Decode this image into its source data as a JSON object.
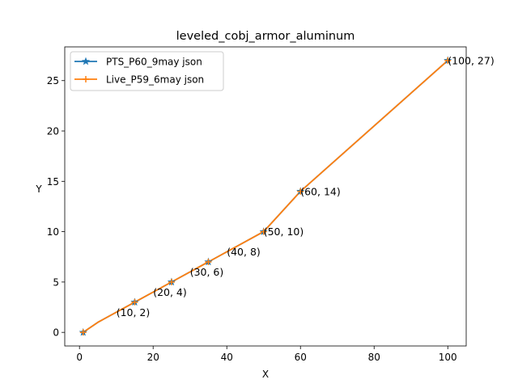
{
  "chart_data": {
    "type": "line",
    "title": "leveled_cobj_armor_aluminum",
    "xlabel": "X",
    "ylabel": "Y",
    "xlim": [
      -4,
      105
    ],
    "ylim": [
      -1.35,
      28.35
    ],
    "xticks": [
      0,
      20,
      40,
      60,
      80,
      100
    ],
    "yticks": [
      0,
      5,
      10,
      15,
      20,
      25
    ],
    "grid": false,
    "legend_position": "top-left",
    "series": [
      {
        "name": "PTS_P60_9may json",
        "color": "#1f77b4",
        "marker": "star",
        "x": [
          1,
          5,
          15,
          25,
          35,
          50,
          60,
          100
        ],
        "y": [
          0,
          1,
          3,
          5,
          7,
          10,
          14,
          27
        ]
      },
      {
        "name": "Live_P59_6may json",
        "color": "#ff7f0e",
        "marker": "plus",
        "x": [
          1,
          5,
          15,
          25,
          35,
          50,
          60,
          100
        ],
        "y": [
          0,
          1,
          3,
          5,
          7,
          10,
          14,
          27
        ]
      }
    ],
    "annotations": [
      {
        "text": "(10, 2)",
        "x": 10,
        "y": 2
      },
      {
        "text": "(20, 4)",
        "x": 20,
        "y": 4
      },
      {
        "text": "(30, 6)",
        "x": 30,
        "y": 6
      },
      {
        "text": "(40, 8)",
        "x": 40,
        "y": 8
      },
      {
        "text": "(50, 10)",
        "x": 50,
        "y": 10
      },
      {
        "text": "(60, 14)",
        "x": 60,
        "y": 14
      },
      {
        "text": "(100, 27)",
        "x": 100,
        "y": 27
      }
    ],
    "marker_points": {
      "x": [
        1,
        15,
        25,
        35,
        50,
        60,
        100
      ],
      "y": [
        0,
        3,
        5,
        7,
        10,
        14,
        27
      ]
    }
  }
}
